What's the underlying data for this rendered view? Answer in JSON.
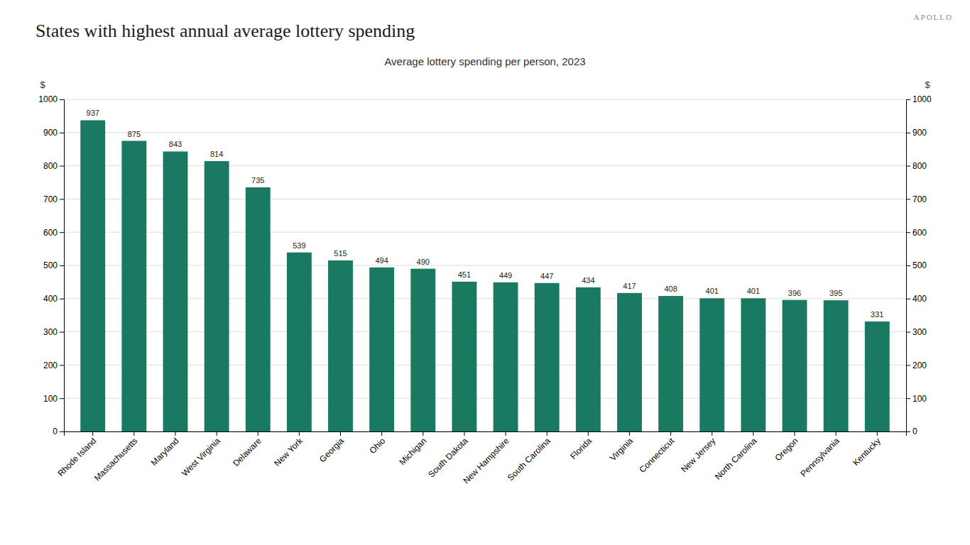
{
  "chart_data": {
    "type": "bar",
    "title": "States with highest annual average lottery spending",
    "subtitle": "Average lottery spending per person, 2023",
    "watermark": "APOLLO",
    "categories": [
      "Rhode Island",
      "Massachusetts",
      "Maryland",
      "West Virginia",
      "Delaware",
      "New York",
      "Georgia",
      "Ohio",
      "Michigan",
      "South Dakota",
      "New Hampshire",
      "South Carolina",
      "Florida",
      "Virginia",
      "Connecticut",
      "New Jersey",
      "North Carolina",
      "Oregon",
      "Pennsylvania",
      "Kentucky"
    ],
    "values": [
      937,
      875,
      843,
      814,
      735,
      539,
      515,
      494,
      490,
      451,
      449,
      447,
      434,
      417,
      408,
      401,
      401,
      396,
      395,
      331
    ],
    "color": "#1a7a61",
    "ylabel": "$",
    "y2label": "$",
    "ylim": [
      0,
      1000
    ],
    "yticks": [
      0,
      100,
      200,
      300,
      400,
      500,
      600,
      700,
      800,
      900,
      1000
    ],
    "y2lim": [
      0,
      1000
    ],
    "y2ticks": [
      0,
      100,
      200,
      300,
      400,
      500,
      600,
      700,
      800,
      900,
      1000
    ],
    "grid": true,
    "data_labels": true
  }
}
